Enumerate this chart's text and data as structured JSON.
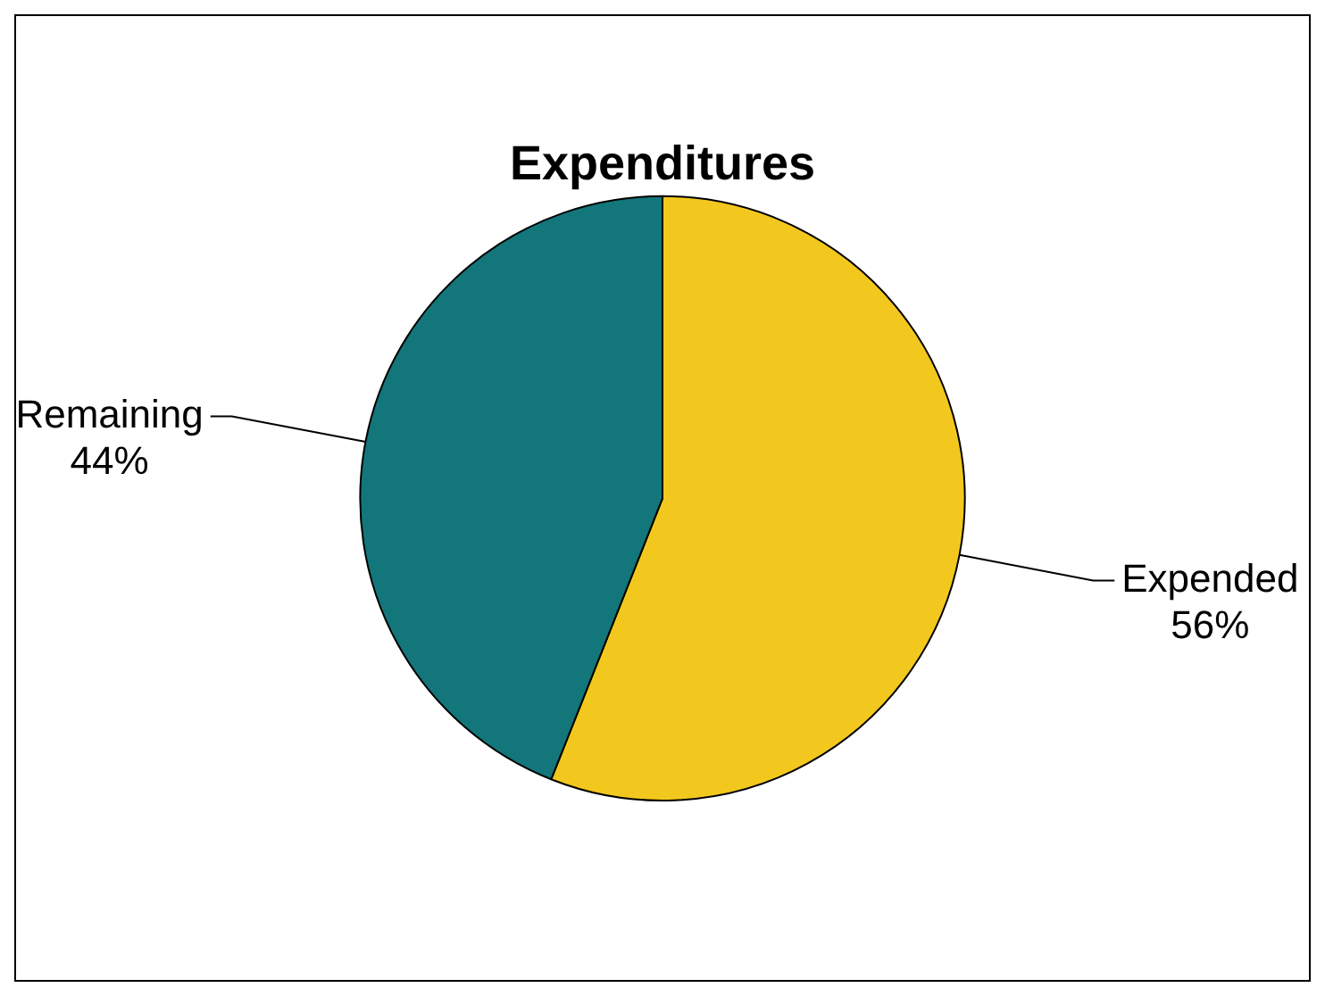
{
  "chart_data": {
    "type": "pie",
    "title": "Expenditures",
    "categories": [
      "Expended",
      "Remaining"
    ],
    "values": [
      56,
      44
    ],
    "colors": [
      "#f2c81e",
      "#13767a"
    ],
    "value_labels": [
      "56%",
      "44%"
    ],
    "legend": false
  }
}
